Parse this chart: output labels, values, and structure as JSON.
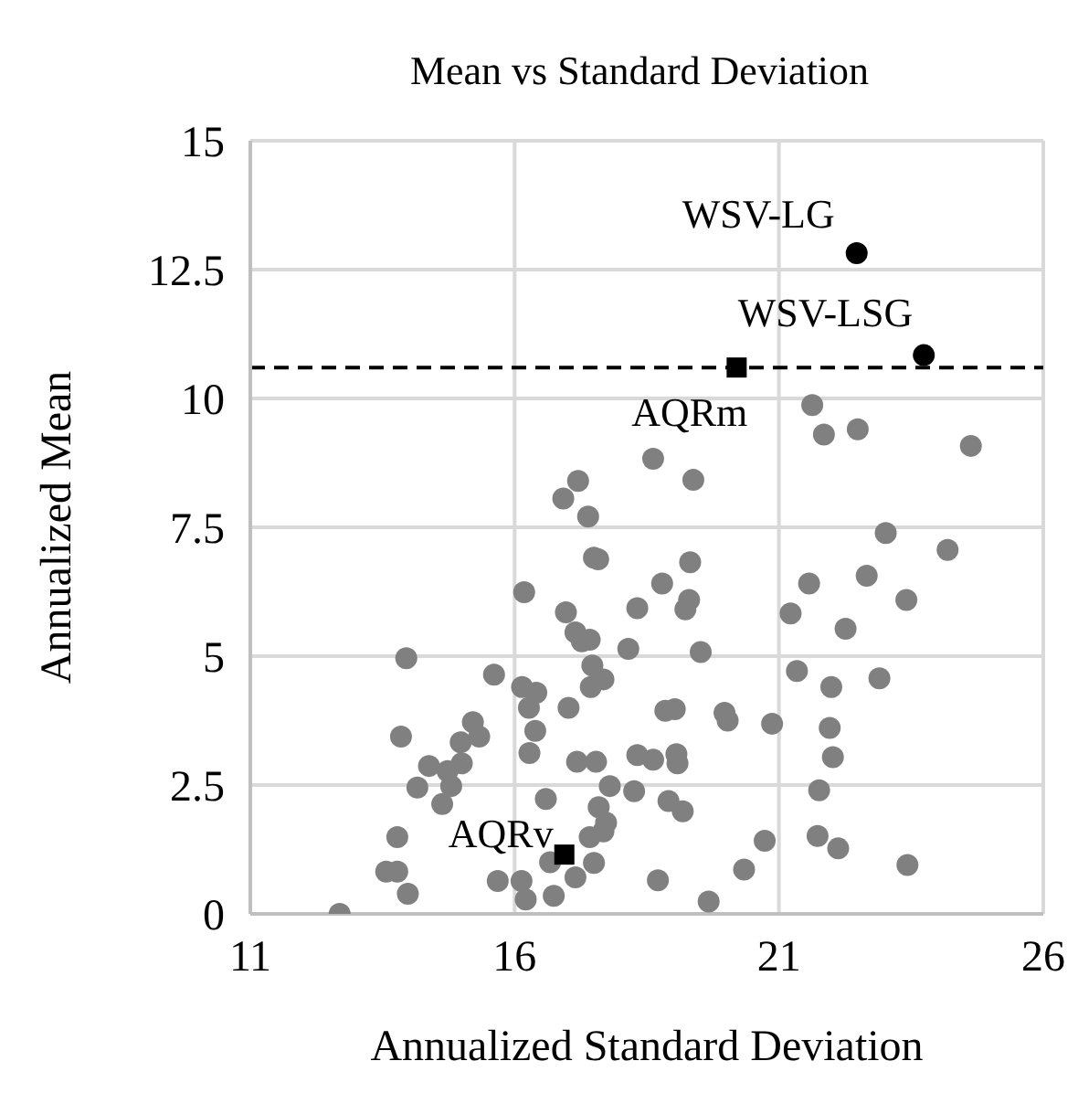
{
  "chart_data": {
    "type": "scatter",
    "title": "Mean vs Standard Deviation",
    "xlabel": "Annualized Standard Deviation",
    "ylabel": "Annualized Mean",
    "xlim": [
      11,
      26
    ],
    "xticks": [
      11,
      16,
      21,
      26
    ],
    "ylim": [
      0,
      15
    ],
    "yticks": [
      0,
      2.5,
      5,
      7.5,
      10,
      12.5,
      15
    ],
    "grid": true,
    "legend": false,
    "ref_lines": [
      {
        "axis": "y",
        "value": 10.6,
        "color": "#000000",
        "line_style": "dashed"
      }
    ],
    "series": [
      {
        "color": "#808080",
        "marker": "circle",
        "x": [
          12.69,
          13.57,
          13.78,
          13.98,
          13.78,
          13.85,
          13.95,
          14.16,
          14.38,
          14.63,
          14.8,
          14.73,
          15.0,
          14.98,
          15.33,
          15.21,
          15.61,
          15.68,
          16.18,
          16.14,
          16.41,
          16.27,
          16.39,
          16.28,
          16.59,
          16.13,
          16.21,
          16.67,
          16.74,
          17.15,
          17.5,
          17.42,
          17.68,
          17.73,
          17.59,
          17.8,
          17.18,
          17.54,
          17.02,
          17.44,
          17.68,
          17.47,
          17.27,
          17.15,
          16.97,
          17.42,
          18.15,
          17.5,
          17.58,
          17.39,
          16.92,
          18.32,
          18.32,
          18.26,
          17.2,
          18.62,
          19.38,
          21.63,
          21.85,
          22.49,
          24.63,
          23.02,
          24.19,
          22.66,
          21.57,
          23.41,
          21.22,
          22.26,
          21.34,
          21.99,
          22.9,
          20.87,
          21.96,
          22.02,
          21.76,
          21.73,
          22.12,
          23.43,
          20.73,
          20.34,
          19.67,
          18.71,
          19.32,
          18.79,
          19.3,
          19.23,
          19.52,
          18.85,
          19.03,
          19.97,
          20.03,
          18.62,
          19.06,
          19.08,
          18.91,
          19.18
        ],
        "values": [
          0.0,
          0.82,
          0.82,
          0.39,
          1.49,
          3.44,
          4.96,
          2.45,
          2.87,
          2.13,
          2.48,
          2.77,
          2.92,
          3.33,
          3.44,
          3.72,
          4.64,
          0.64,
          6.24,
          4.4,
          4.29,
          4.0,
          3.55,
          3.12,
          2.23,
          0.64,
          0.28,
          1.0,
          0.35,
          0.71,
          0.99,
          1.49,
          1.6,
          1.77,
          2.07,
          2.48,
          2.95,
          2.95,
          4.0,
          4.4,
          4.55,
          4.82,
          5.29,
          5.46,
          5.85,
          5.32,
          5.14,
          6.91,
          6.88,
          7.71,
          8.06,
          5.93,
          3.08,
          2.38,
          8.4,
          8.83,
          8.42,
          9.87,
          9.3,
          9.4,
          9.08,
          7.39,
          7.06,
          6.56,
          6.41,
          6.09,
          5.83,
          5.53,
          4.71,
          4.4,
          4.57,
          3.69,
          3.61,
          3.04,
          2.4,
          1.51,
          1.27,
          0.95,
          1.42,
          0.86,
          0.24,
          0.65,
          6.82,
          6.41,
          6.09,
          5.91,
          5.08,
          3.94,
          3.97,
          3.9,
          3.75,
          2.99,
          3.1,
          2.92,
          2.19,
          1.99
        ]
      },
      {
        "name": "WSV-LG",
        "color": "#000000",
        "marker": "circle",
        "x": [
          22.47
        ],
        "values": [
          12.82
        ]
      },
      {
        "name": "WSV-LSG",
        "color": "#000000",
        "marker": "circle",
        "x": [
          23.74
        ],
        "values": [
          10.84
        ]
      },
      {
        "name": "AQRm",
        "color": "#000000",
        "marker": "square",
        "x": [
          20.2
        ],
        "values": [
          10.6
        ]
      },
      {
        "name": "AQRv",
        "color": "#000000",
        "marker": "square",
        "x": [
          16.94
        ],
        "values": [
          1.15
        ]
      }
    ]
  }
}
